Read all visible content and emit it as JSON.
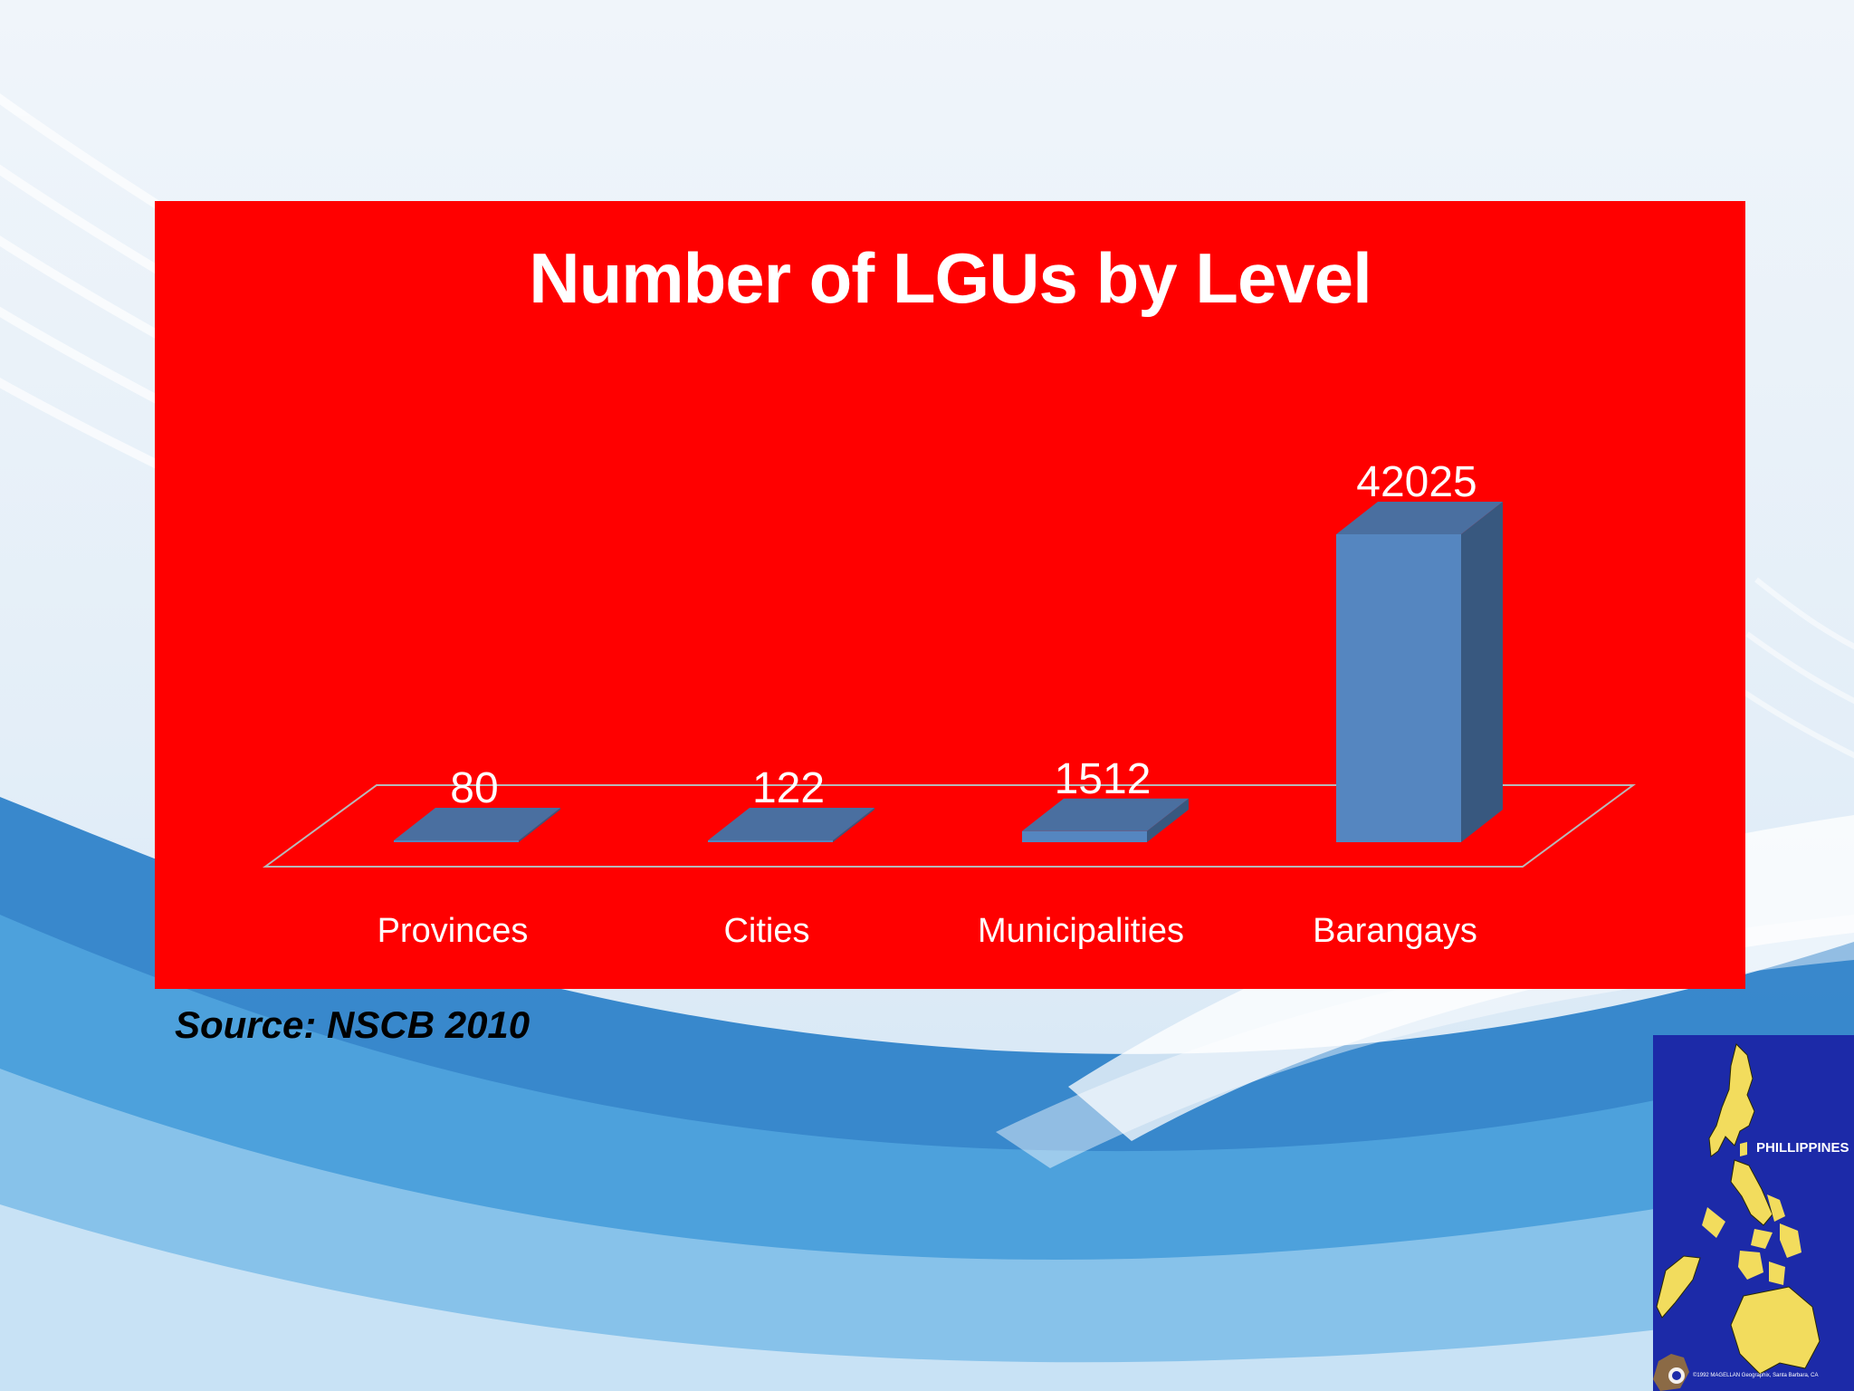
{
  "chart_data": {
    "type": "bar",
    "title": "Number of LGUs by Level",
    "categories": [
      "Provinces",
      "Cities",
      "Municipalities",
      "Barangays"
    ],
    "values": [
      80,
      122,
      1512,
      42025
    ],
    "data_labels": [
      "80",
      "122",
      "1512",
      "42025"
    ],
    "ylim": [
      0,
      42025
    ],
    "grid": false,
    "legend": "none",
    "style": "3d-column",
    "colors": {
      "background": "#ff0000",
      "bar_front": "#5586c0",
      "bar_side": "#38587f",
      "bar_top": "#4a6fa0",
      "text": "#ffffff"
    }
  },
  "source": "Source: NSCB 2010",
  "map_inset": {
    "label": "PHILLIPPINES",
    "credit": "©1992 MAGELLAN Geographix, Santa Barbara, CA",
    "colors": {
      "sea": "#1c2aa8",
      "land": "#f2dc5d"
    }
  }
}
